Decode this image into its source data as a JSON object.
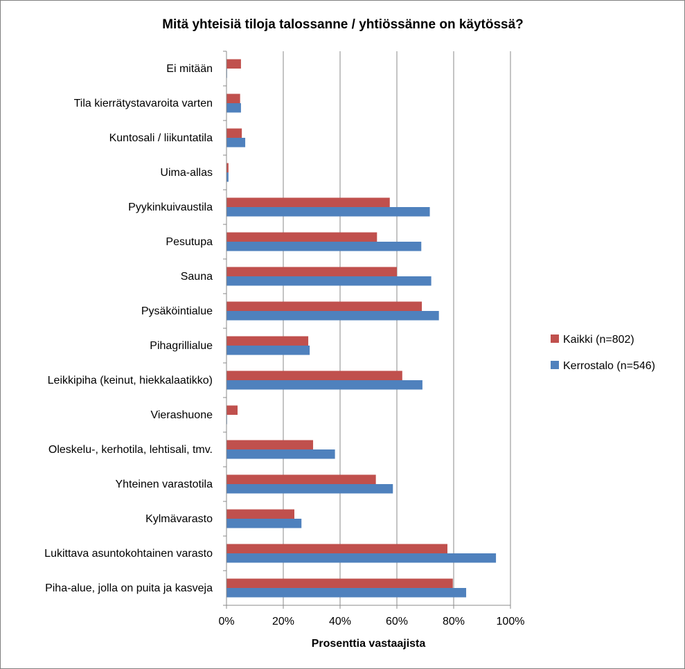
{
  "chart_data": {
    "type": "bar",
    "orientation": "horizontal",
    "title": "Mitä yhteisiä tiloja talossanne / yhtiössänne on käytössä?",
    "xlabel": "Prosenttia vastaajista",
    "ylabel": "",
    "xlim": [
      0,
      100
    ],
    "x_ticks": [
      "0%",
      "20%",
      "40%",
      "60%",
      "80%",
      "100%"
    ],
    "grid": "vertical",
    "legend_position": "right",
    "categories": [
      "Ei mitään",
      "Tila kierrätystavaroita varten",
      "Kuntosali / liikuntatila",
      "Uima-allas",
      "Pyykinkuivaustila",
      "Pesutupa",
      "Sauna",
      "Pysäköintialue",
      "Pihagrillialue",
      "Leikkipiha (keinut, hiekkalaatikko)",
      "Vierashuone",
      "Oleskelu-, kerhotila, lehtisali, tmv.",
      "Yhteinen varastotila",
      "Kylmävarasto",
      "Lukittava asuntokohtainen varasto",
      "Piha-alue, jolla on puita ja kasveja"
    ],
    "series": [
      {
        "name": "Kaikki (n=802)",
        "color": "#c0504d",
        "values": [
          5.1,
          4.8,
          5.4,
          0.7,
          57.5,
          53,
          60,
          68.8,
          28.8,
          61.9,
          3.9,
          30.5,
          52.6,
          23.9,
          77.8,
          79.7
        ]
      },
      {
        "name": "Kerrostalo (n=546)",
        "color": "#4f81bd",
        "values": [
          0.2,
          5.1,
          6.6,
          0.7,
          71.6,
          68.6,
          72.1,
          74.8,
          29.3,
          69,
          0.2,
          38.2,
          58.6,
          26.4,
          94.9,
          84.4
        ]
      }
    ]
  }
}
